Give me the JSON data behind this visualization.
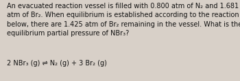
{
  "background_color": "#d8d0c8",
  "text_color": "#111111",
  "line1": "An evacuated reaction vessel is filled with 0.800 atm of N₂ and 1.681",
  "line2": "atm of Br₂. When equilibrium is established according to the reaction",
  "line3": "below, there are 1.425 atm of Br₂ remaining in the vessel. What is the",
  "line4": "equilibrium partial pressure of NBr₃?",
  "equation": "2 NBr₃ (g) ⇌ N₂ (g) + 3 Br₂ (g)",
  "font_size_para": 7.0,
  "font_size_eq": 7.0,
  "figsize": [
    3.5,
    1.19
  ],
  "dpi": 100
}
